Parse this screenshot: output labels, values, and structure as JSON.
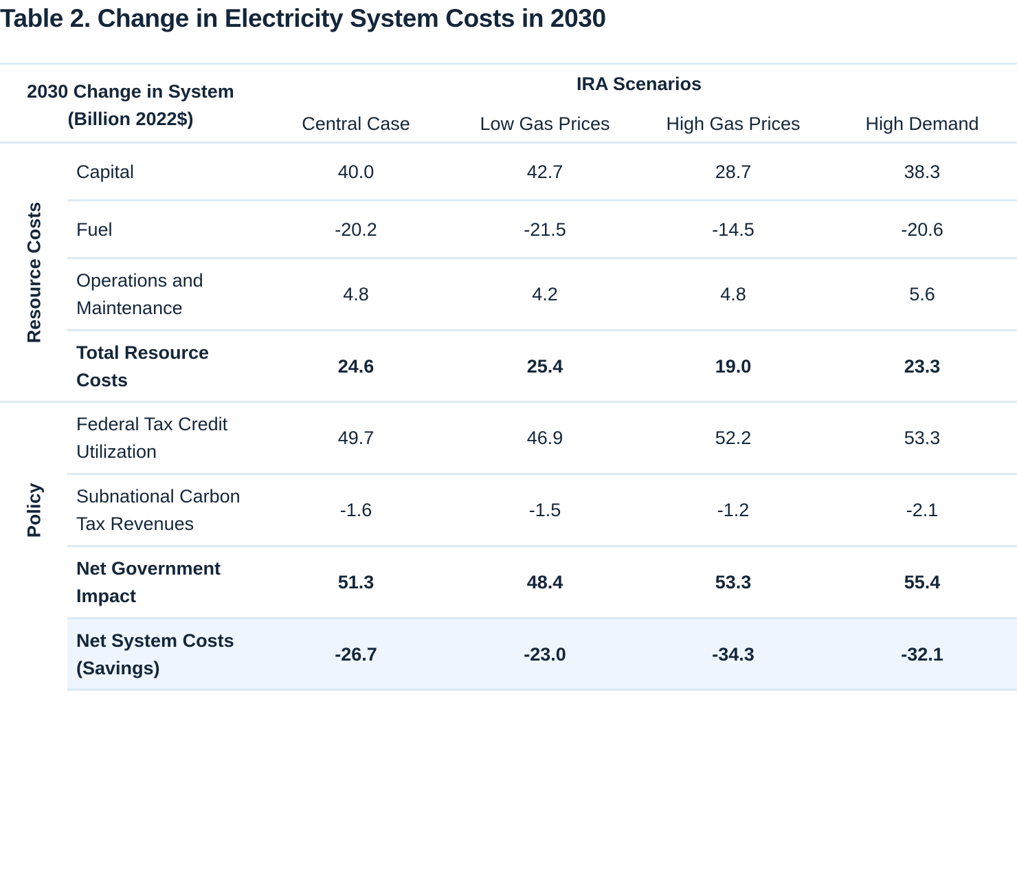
{
  "title": "Table 2.  Change in Electricity System Costs in 2030",
  "header": {
    "row_header_line1": "2030 Change in System",
    "row_header_line2": "(Billion 2022$)",
    "group": "IRA Scenarios",
    "columns": [
      "Central Case",
      "Low Gas Prices",
      "High Gas Prices",
      "High Demand"
    ]
  },
  "groups": {
    "resource": "Resource Costs",
    "policy": "Policy"
  },
  "rows": [
    {
      "label1": "Capital",
      "label2": "",
      "values": [
        "40.0",
        "42.7",
        "28.7",
        "38.3"
      ]
    },
    {
      "label1": "Fuel",
      "label2": "",
      "values": [
        "-20.2",
        "-21.5",
        "-14.5",
        "-20.6"
      ]
    },
    {
      "label1": "Operations and",
      "label2": "Maintenance",
      "values": [
        "4.8",
        "4.2",
        "4.8",
        "5.6"
      ]
    },
    {
      "label1": "Total Resource",
      "label2": "Costs",
      "values": [
        "24.6",
        "25.4",
        "19.0",
        "23.3"
      ]
    },
    {
      "label1": "Federal Tax Credit",
      "label2": "Utilization",
      "values": [
        "49.7",
        "46.9",
        "52.2",
        "53.3"
      ]
    },
    {
      "label1": "Subnational Carbon",
      "label2": "Tax Revenues",
      "values": [
        "-1.6",
        "-1.5",
        "-1.2",
        "-2.1"
      ]
    },
    {
      "label1": "Net Government",
      "label2": "Impact",
      "values": [
        "51.3",
        "48.4",
        "53.3",
        "55.4"
      ]
    },
    {
      "label1": "Net System Costs",
      "label2": "(Savings)",
      "values": [
        "-26.7",
        "-23.0",
        "-34.3",
        "-32.1"
      ]
    }
  ]
}
